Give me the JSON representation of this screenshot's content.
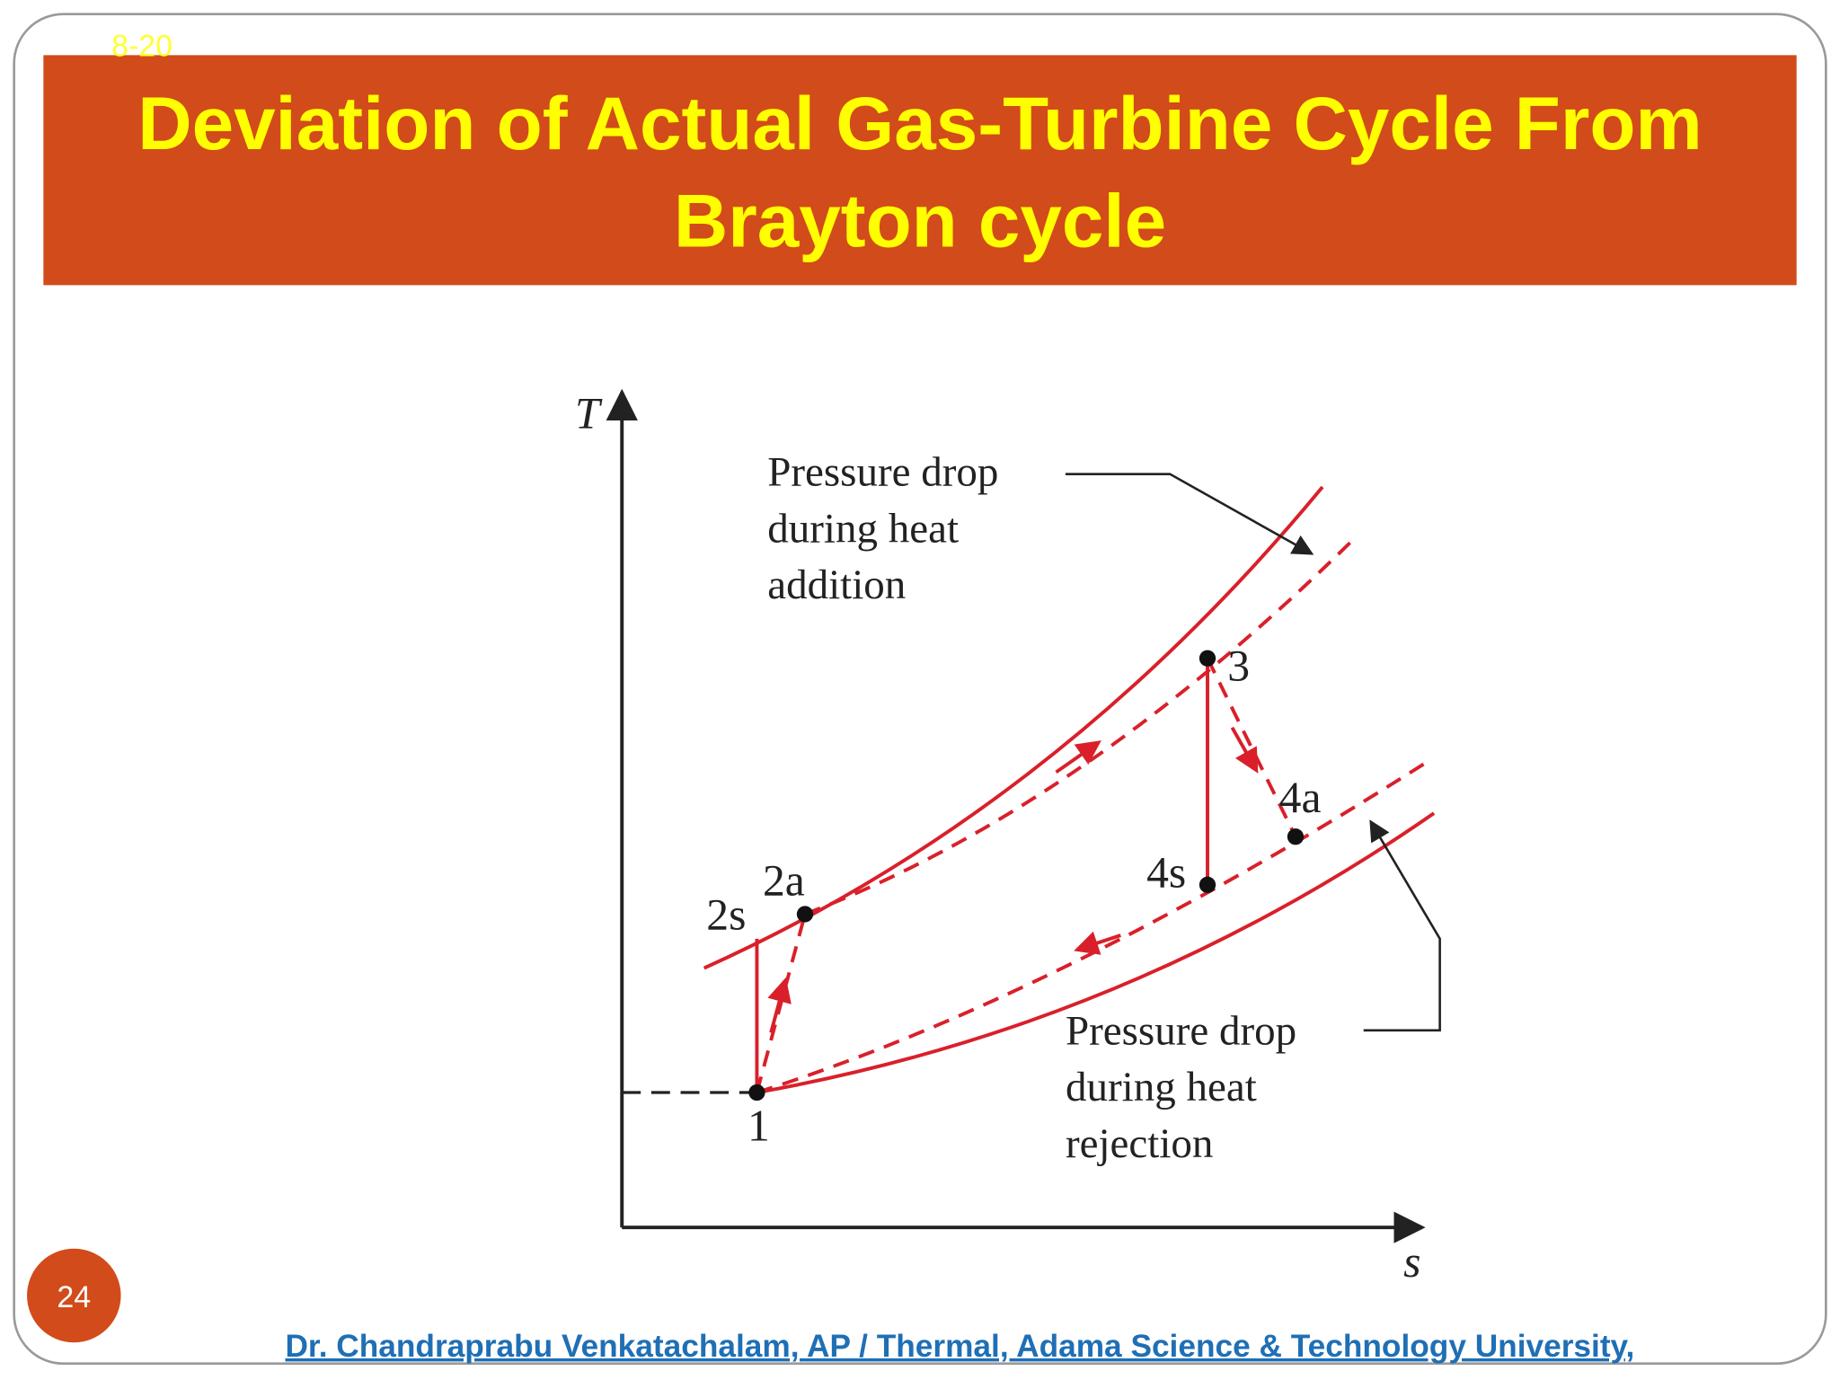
{
  "slide": {
    "tag": "8-20",
    "title_lines": [
      "Deviation of Actual Gas-Turbine Cycle From",
      "Brayton cycle"
    ],
    "page_number": "24",
    "footer": "Dr. Chandraprabu Venkatachalam, AP / Thermal, Adama Science & Technology University,"
  },
  "diagram": {
    "y_axis": "T",
    "x_axis": "s",
    "points": [
      "1",
      "2s",
      "2a",
      "3",
      "4s",
      "4a"
    ],
    "annotations": [
      {
        "lines": [
          "Pressure drop",
          "during heat",
          "addition"
        ]
      },
      {
        "lines": [
          "Pressure drop",
          "during heat",
          "rejection"
        ]
      }
    ]
  }
}
